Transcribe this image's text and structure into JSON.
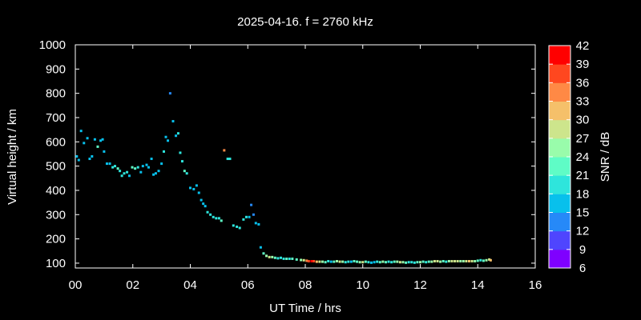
{
  "chart_data": {
    "type": "scatter",
    "title": "2025-04-16. f = 2760 kHz",
    "xlabel": "UT Time / hrs",
    "ylabel": "Virtual height / km",
    "xlim": [
      0,
      16
    ],
    "ylim": [
      80,
      1000
    ],
    "xticks": [
      {
        "v": 0,
        "label": "00"
      },
      {
        "v": 2,
        "label": "02"
      },
      {
        "v": 4,
        "label": "04"
      },
      {
        "v": 6,
        "label": "06"
      },
      {
        "v": 8,
        "label": "08"
      },
      {
        "v": 10,
        "label": "10"
      },
      {
        "v": 12,
        "label": "12"
      },
      {
        "v": 14,
        "label": "14"
      },
      {
        "v": 16,
        "label": "16"
      }
    ],
    "yticks": [
      100,
      200,
      300,
      400,
      500,
      600,
      700,
      800,
      900,
      1000
    ],
    "colorbar": {
      "label": "SNR / dB",
      "range": [
        6,
        42
      ],
      "ticks": [
        6,
        9,
        12,
        15,
        18,
        21,
        24,
        27,
        30,
        33,
        36,
        39,
        42
      ],
      "colors": [
        "#7f00ff",
        "#4f45fe",
        "#2689f8",
        "#08c0ec",
        "#2ee5dc",
        "#5ffcc6",
        "#99fcab",
        "#cde58c",
        "#f5c06a",
        "#ff8945",
        "#ff471f",
        "#ff0000"
      ]
    },
    "points": [
      [
        0.05,
        540,
        16
      ],
      [
        0.12,
        525,
        15
      ],
      [
        0.2,
        645,
        15
      ],
      [
        0.3,
        595,
        17
      ],
      [
        0.42,
        615,
        16
      ],
      [
        0.5,
        530,
        16
      ],
      [
        0.58,
        540,
        16
      ],
      [
        0.68,
        610,
        17
      ],
      [
        0.78,
        580,
        23
      ],
      [
        0.88,
        605,
        16
      ],
      [
        0.95,
        610,
        16
      ],
      [
        1.0,
        560,
        17
      ],
      [
        1.1,
        510,
        17
      ],
      [
        1.2,
        510,
        17
      ],
      [
        1.3,
        495,
        20
      ],
      [
        1.38,
        500,
        20
      ],
      [
        1.48,
        490,
        21
      ],
      [
        1.55,
        480,
        20
      ],
      [
        1.62,
        460,
        19
      ],
      [
        1.7,
        470,
        20
      ],
      [
        1.8,
        475,
        20
      ],
      [
        1.88,
        460,
        17
      ],
      [
        1.98,
        495,
        23
      ],
      [
        2.08,
        490,
        21
      ],
      [
        2.18,
        495,
        20
      ],
      [
        2.28,
        475,
        17
      ],
      [
        2.35,
        500,
        15
      ],
      [
        2.48,
        505,
        17
      ],
      [
        2.55,
        495,
        15
      ],
      [
        2.65,
        530,
        16
      ],
      [
        2.72,
        465,
        17
      ],
      [
        2.8,
        470,
        16
      ],
      [
        2.9,
        480,
        17
      ],
      [
        3.0,
        510,
        16
      ],
      [
        3.08,
        560,
        20
      ],
      [
        3.15,
        620,
        16
      ],
      [
        3.22,
        605,
        16
      ],
      [
        3.3,
        800,
        14
      ],
      [
        3.4,
        685,
        15
      ],
      [
        3.5,
        625,
        17
      ],
      [
        3.58,
        635,
        18
      ],
      [
        3.65,
        555,
        20
      ],
      [
        3.72,
        520,
        20
      ],
      [
        3.8,
        480,
        22
      ],
      [
        3.88,
        470,
        20
      ],
      [
        4.0,
        410,
        16
      ],
      [
        4.12,
        405,
        16
      ],
      [
        4.22,
        420,
        15
      ],
      [
        4.3,
        390,
        16
      ],
      [
        4.38,
        360,
        16
      ],
      [
        4.45,
        345,
        16
      ],
      [
        4.52,
        335,
        17
      ],
      [
        4.6,
        310,
        18
      ],
      [
        4.7,
        300,
        19
      ],
      [
        4.8,
        290,
        20
      ],
      [
        4.9,
        285,
        20
      ],
      [
        5.0,
        285,
        19
      ],
      [
        5.08,
        275,
        22
      ],
      [
        5.18,
        565,
        33
      ],
      [
        5.3,
        530,
        19
      ],
      [
        5.38,
        530,
        19
      ],
      [
        5.5,
        255,
        19
      ],
      [
        5.62,
        250,
        20
      ],
      [
        5.72,
        245,
        18
      ],
      [
        5.85,
        280,
        20
      ],
      [
        5.95,
        290,
        20
      ],
      [
        6.05,
        290,
        16
      ],
      [
        6.12,
        340,
        14
      ],
      [
        6.2,
        300,
        14
      ],
      [
        6.28,
        265,
        15
      ],
      [
        6.38,
        260,
        15
      ],
      [
        6.45,
        165,
        17
      ],
      [
        6.55,
        140,
        22
      ],
      [
        6.65,
        130,
        24
      ],
      [
        6.75,
        125,
        28
      ],
      [
        6.85,
        125,
        24
      ],
      [
        6.95,
        122,
        23
      ],
      [
        7.05,
        120,
        18
      ],
      [
        7.15,
        122,
        20
      ],
      [
        7.25,
        118,
        19
      ],
      [
        7.35,
        118,
        22
      ],
      [
        7.45,
        118,
        20
      ],
      [
        7.55,
        118,
        21
      ],
      [
        7.7,
        115,
        23
      ],
      [
        7.85,
        113,
        25
      ],
      [
        7.95,
        112,
        28
      ],
      [
        8.05,
        110,
        33
      ],
      [
        8.12,
        108,
        38
      ],
      [
        8.22,
        108,
        42
      ],
      [
        8.3,
        108,
        38
      ],
      [
        8.4,
        106,
        30
      ],
      [
        8.5,
        106,
        28
      ],
      [
        8.6,
        106,
        24
      ],
      [
        8.7,
        104,
        21
      ],
      [
        8.8,
        108,
        19
      ],
      [
        8.9,
        106,
        17
      ],
      [
        9.0,
        106,
        22
      ],
      [
        9.1,
        108,
        24
      ],
      [
        9.2,
        106,
        27
      ],
      [
        9.3,
        106,
        24
      ],
      [
        9.4,
        104,
        20
      ],
      [
        9.5,
        106,
        18
      ],
      [
        9.6,
        106,
        17
      ],
      [
        9.7,
        108,
        21
      ],
      [
        9.8,
        106,
        23
      ],
      [
        9.9,
        104,
        24
      ],
      [
        10.0,
        104,
        27
      ],
      [
        10.1,
        106,
        21
      ],
      [
        10.2,
        104,
        18
      ],
      [
        10.3,
        102,
        16
      ],
      [
        10.4,
        104,
        17
      ],
      [
        10.5,
        106,
        20
      ],
      [
        10.6,
        104,
        22
      ],
      [
        10.7,
        106,
        24
      ],
      [
        10.8,
        104,
        21
      ],
      [
        10.9,
        106,
        19
      ],
      [
        11.0,
        104,
        18
      ],
      [
        11.1,
        106,
        22
      ],
      [
        11.2,
        106,
        24
      ],
      [
        11.3,
        104,
        27
      ],
      [
        11.4,
        104,
        25
      ],
      [
        11.5,
        102,
        21
      ],
      [
        11.6,
        104,
        19
      ],
      [
        11.7,
        104,
        20
      ],
      [
        11.8,
        102,
        18
      ],
      [
        11.9,
        104,
        21
      ],
      [
        12.0,
        104,
        24
      ],
      [
        12.1,
        106,
        21
      ],
      [
        12.2,
        104,
        19
      ],
      [
        12.3,
        106,
        22
      ],
      [
        12.4,
        106,
        24
      ],
      [
        12.5,
        108,
        27
      ],
      [
        12.6,
        108,
        28
      ],
      [
        12.7,
        106,
        24
      ],
      [
        12.8,
        108,
        21
      ],
      [
        12.9,
        106,
        20
      ],
      [
        13.0,
        108,
        24
      ],
      [
        13.1,
        108,
        27
      ],
      [
        13.2,
        108,
        29
      ],
      [
        13.3,
        108,
        27
      ],
      [
        13.4,
        108,
        24
      ],
      [
        13.5,
        108,
        25
      ],
      [
        13.6,
        108,
        28
      ],
      [
        13.7,
        108,
        30
      ],
      [
        13.8,
        108,
        27
      ],
      [
        13.9,
        108,
        24
      ],
      [
        14.0,
        110,
        21
      ],
      [
        14.1,
        112,
        20
      ],
      [
        14.2,
        110,
        22
      ],
      [
        14.3,
        112,
        24
      ],
      [
        14.4,
        115,
        27
      ],
      [
        14.45,
        112,
        30
      ]
    ]
  }
}
